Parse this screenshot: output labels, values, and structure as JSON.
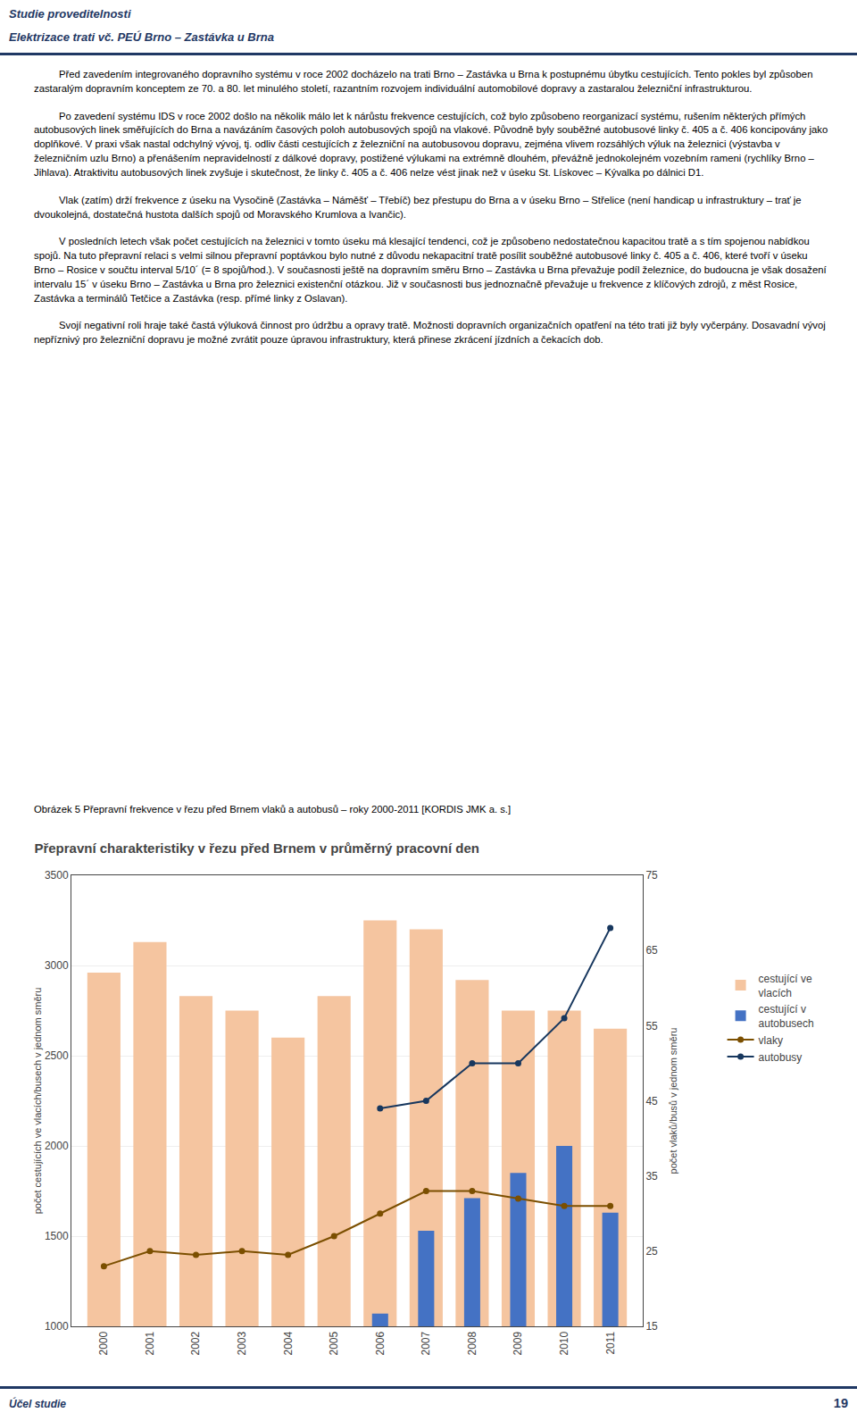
{
  "chart_data": {
    "type": "bar",
    "title": "Přepravní charakteristiky v řezu před Brnem v průměrný pracovní den",
    "categories": [
      "2000",
      "2001",
      "2002",
      "2003",
      "2004",
      "2005",
      "2006",
      "2007",
      "2008",
      "2009",
      "2010",
      "2011"
    ],
    "series": [
      {
        "name": "cestující ve\nvlacích",
        "type": "bar",
        "color": "#F5C5A0",
        "values": [
          2960,
          3130,
          2830,
          2750,
          2600,
          2830,
          3250,
          3200,
          2920,
          2750,
          2750,
          2650
        ]
      },
      {
        "name": "cestující v\nautobusech",
        "type": "bar",
        "color": "#4472C4",
        "values": [
          null,
          null,
          null,
          null,
          null,
          null,
          1070,
          1530,
          1710,
          1850,
          2000,
          1630
        ]
      },
      {
        "name": "vlaky",
        "type": "line",
        "axis": "y2",
        "color": "#7B4F00",
        "marker": "circle",
        "values": [
          23,
          25,
          24.5,
          25,
          24.5,
          27,
          30,
          33,
          33,
          32,
          31,
          31
        ]
      },
      {
        "name": "autobusy",
        "type": "line",
        "axis": "y2",
        "color": "#17375E",
        "marker": "circle",
        "values": [
          null,
          null,
          null,
          null,
          null,
          null,
          44,
          45,
          50,
          50,
          56,
          68
        ]
      }
    ],
    "ylabel": "počet cestujících ve vlacích/busech v jednom směru",
    "y2label": "počet vlaků/busů v jednom směru",
    "ylim": [
      1000,
      3500
    ],
    "yticks": [
      1000,
      1500,
      2000,
      2500,
      3000,
      3500
    ],
    "y2lim": [
      15,
      75
    ],
    "y2ticks": [
      15,
      25,
      35,
      45,
      55,
      65,
      75
    ],
    "grid": true,
    "legend": "right",
    "annotations": [
      "Studie proveditelnosti",
      "Elektrizace trati vč. PEÚ Brno – Zastávka u Brna",
      "Před zavedením integrovaného dopravního systému v roce 2002 docházelo na trati Brno – Zastávka u Brna k postupnému úbytku cestujících. Tento pokles byl způsoben zastaralým dopravním konceptem ze 70. a 80. let minulého století, razantním rozvojem individuální automobilové dopravy a zastaralou železniční infrastrukturou.",
      "Po zavedení systému IDS v roce 2002 došlo na několik málo let k nárůstu frekvence cestujících, což bylo způsobeno reorganizací systému, rušením některých přímých autobusových linek směřujících do Brna a navázáním časových poloh autobusových spojů na vlakové. Původně byly souběžné autobusové linky č. 405 a č. 406 koncipovány jako doplňkové. V praxi však nastal odchylný vývoj, tj. odliv části cestujících z železniční na autobusovou dopravu, zejména vlivem rozsáhlých výluk na železnici (výstavba v železničním uzlu Brno) a přenášením nepravidelností z dálkové dopravy, postižené výlukami na extrémně dlouhém, převážně jednokolejném vozebním rameni (rychlíky Brno – Jihlava). Atraktivitu autobusových linek zvyšuje i skutečnost, že linky č. 405 a č. 406 nelze vést jinak než v úseku St. Lískovec – Kývalka po dálnici D1.",
      "Vlak (zatím) drží frekvence z úseku na Vysočině (Zastávka – Náměšť – Třebíč) bez přestupu do Brna a v úseku Brno – Střelice (není handicap u infrastruktury – trať je dvoukolejná, dostatečná hustota dalších spojů od Moravského Krumlova a Ivančic).",
      "V posledních letech však počet cestujících na železnici v tomto úseku má klesající tendenci, což je způsobeno nedostatečnou kapacitou tratě a s tím spojenou nabídkou spojů. Na tuto přepravní relaci s velmi silnou přepravní poptávkou bylo nutné z důvodu nekapacitní tratě posílit souběžné autobusové linky č. 405 a č. 406, které tvoří v úseku Brno – Rosice v součtu interval 5/10´ (= 8 spojů/hod.). V současnosti ještě na dopravním směru Brno – Zastávka u Brna převažuje podíl železnice, do budoucna je však dosažení intervalu 15´ v úseku Brno – Zastávka u Brna pro železnici existenční otázkou. Již v současnosti bus jednoznačně převažuje u frekvence z klíčových zdrojů, z měst Rosice, Zastávka a terminálů Tetčice a Zastávka (resp. přímé linky z Oslavan).",
      "Svojí negativní roli hraje také častá výluková činnost pro údržbu a opravy tratě. Možnosti dopravních organizačních opatření na této trati již byly vyčerpány. Dosavadní vývoj nepříznivý pro železniční dopravu je možné zvrátit pouze úpravou infrastruktury, která přinese zkrácení jízdních a čekacích dob.",
      "Obrázek 5 Přepravní frekvence v řezu před Brnem vlaků a autobusů – roky 2000-2011 [KORDIS JMK a. s.]",
      "Účel studie",
      "19"
    ]
  }
}
